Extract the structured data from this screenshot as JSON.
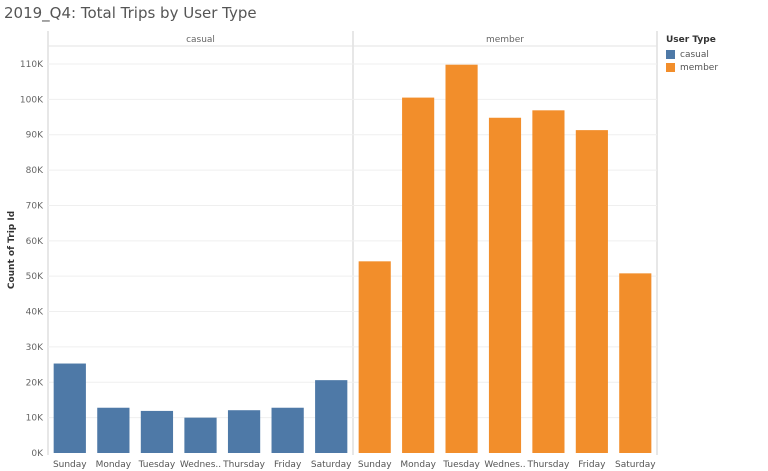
{
  "title": "2019_Q4: Total Trips by User Type",
  "legend": {
    "title": "User Type",
    "items": [
      {
        "label": "casual",
        "color": "#4e79a7"
      },
      {
        "label": "member",
        "color": "#f28e2b"
      }
    ]
  },
  "chart_data": {
    "type": "bar",
    "title": "2019_Q4: Total Trips by User Type",
    "xlabel": "",
    "ylabel": "Count of Trip Id",
    "ylim": [
      0,
      115000
    ],
    "yticks": [
      0,
      10000,
      20000,
      30000,
      40000,
      50000,
      60000,
      70000,
      80000,
      90000,
      100000,
      110000
    ],
    "ytick_labels": [
      "0K",
      "10K",
      "20K",
      "30K",
      "40K",
      "50K",
      "60K",
      "70K",
      "80K",
      "90K",
      "100K",
      "110K"
    ],
    "grid": true,
    "legend_position": "right",
    "panels": [
      {
        "name": "casual",
        "color": "#4e79a7",
        "categories": [
          "Sunday",
          "Monday",
          "Tuesday",
          "Wednes..",
          "Thursday",
          "Friday",
          "Saturday"
        ],
        "values": [
          25300,
          12800,
          11900,
          10000,
          12100,
          12800,
          20600
        ]
      },
      {
        "name": "member",
        "color": "#f28e2b",
        "categories": [
          "Sunday",
          "Monday",
          "Tuesday",
          "Wednes..",
          "Thursday",
          "Friday",
          "Saturday"
        ],
        "values": [
          54200,
          100500,
          109800,
          94800,
          96900,
          91300,
          50800
        ]
      }
    ]
  }
}
